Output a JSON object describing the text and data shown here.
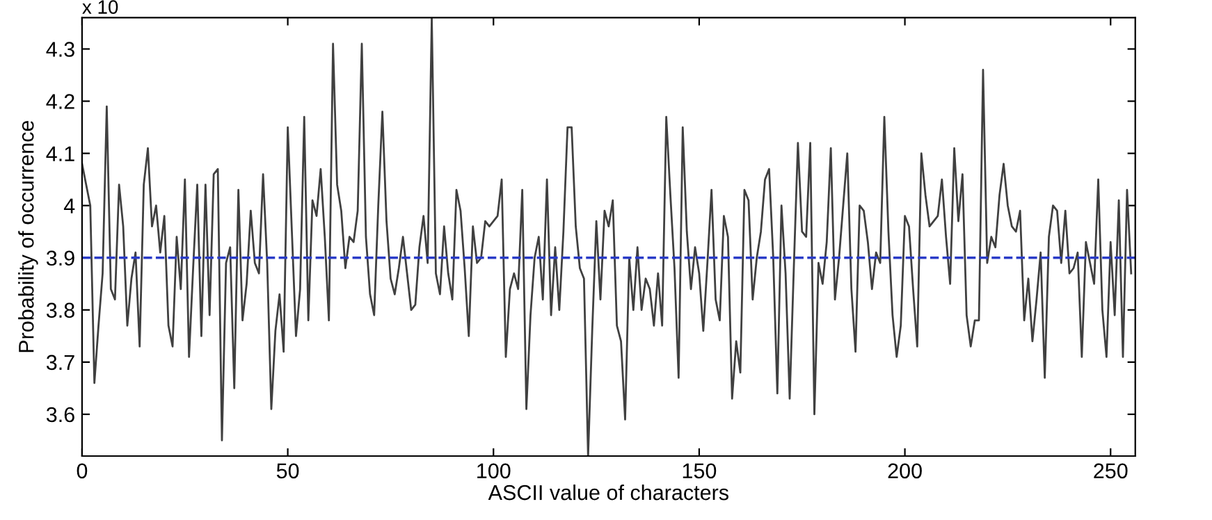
{
  "chart_data": {
    "type": "line",
    "xlabel": "ASCII value of characters",
    "ylabel": "Probability of occurrence",
    "annotations": [
      "x 10"
    ],
    "series": [
      {
        "color": "#404040",
        "x": [
          0,
          1,
          2,
          3,
          4,
          5,
          6,
          7,
          8,
          9,
          10,
          11,
          12,
          13,
          14,
          15,
          16,
          17,
          18,
          19,
          20,
          21,
          22,
          23,
          24,
          25,
          26,
          27,
          28,
          29,
          30,
          31,
          32,
          33,
          34,
          35,
          36,
          37,
          38,
          39,
          40,
          41,
          42,
          43,
          44,
          45,
          46,
          47,
          48,
          49,
          50,
          51,
          52,
          53,
          54,
          55,
          56,
          57,
          58,
          59,
          60,
          61,
          62,
          63,
          64,
          65,
          66,
          67,
          68,
          69,
          70,
          71,
          72,
          73,
          74,
          75,
          76,
          77,
          78,
          79,
          80,
          81,
          82,
          83,
          84,
          85,
          86,
          87,
          88,
          89,
          90,
          91,
          92,
          93,
          94,
          95,
          96,
          97,
          98,
          99,
          100,
          101,
          102,
          103,
          104,
          105,
          106,
          107,
          108,
          109,
          110,
          111,
          112,
          113,
          114,
          115,
          116,
          117,
          118,
          119,
          120,
          121,
          122,
          123,
          124,
          125,
          126,
          127,
          128,
          129,
          130,
          131,
          132,
          133,
          134,
          135,
          136,
          137,
          138,
          139,
          140,
          141,
          142,
          143,
          144,
          145,
          146,
          147,
          148,
          149,
          150,
          151,
          152,
          153,
          154,
          155,
          156,
          157,
          158,
          159,
          160,
          161,
          162,
          163,
          164,
          165,
          166,
          167,
          168,
          169,
          170,
          171,
          172,
          173,
          174,
          175,
          176,
          177,
          178,
          179,
          180,
          181,
          182,
          183,
          184,
          185,
          186,
          187,
          188,
          189,
          190,
          191,
          192,
          193,
          194,
          195,
          196,
          197,
          198,
          199,
          200,
          201,
          202,
          203,
          204,
          205,
          206,
          207,
          208,
          209,
          210,
          211,
          212,
          213,
          214,
          215,
          216,
          217,
          218,
          219,
          220,
          221,
          222,
          223,
          224,
          225,
          226,
          227,
          228,
          229,
          230,
          231,
          232,
          233,
          234,
          235,
          236,
          237,
          238,
          239,
          240,
          241,
          242,
          243,
          244,
          245,
          246,
          247,
          248,
          249,
          250,
          251,
          252,
          253,
          254,
          255
        ],
        "values": [
          4.08,
          4.04,
          4.0,
          3.66,
          3.77,
          3.87,
          4.19,
          3.84,
          3.82,
          4.04,
          3.96,
          3.77,
          3.86,
          3.91,
          3.73,
          4.04,
          4.11,
          3.96,
          4.0,
          3.91,
          3.98,
          3.77,
          3.73,
          3.94,
          3.84,
          4.05,
          3.71,
          3.88,
          4.04,
          3.75,
          4.04,
          3.79,
          4.06,
          4.07,
          3.55,
          3.89,
          3.92,
          3.65,
          4.03,
          3.78,
          3.85,
          3.99,
          3.89,
          3.87,
          4.06,
          3.89,
          3.61,
          3.76,
          3.83,
          3.72,
          4.15,
          3.95,
          3.75,
          3.84,
          4.17,
          3.78,
          4.01,
          3.98,
          4.07,
          3.94,
          3.78,
          4.31,
          4.04,
          3.99,
          3.88,
          3.94,
          3.93,
          3.99,
          4.31,
          3.94,
          3.83,
          3.79,
          4.0,
          4.18,
          3.97,
          3.86,
          3.83,
          3.88,
          3.94,
          3.87,
          3.8,
          3.81,
          3.92,
          3.98,
          3.89,
          4.36,
          3.87,
          3.83,
          3.96,
          3.87,
          3.82,
          4.03,
          3.99,
          3.88,
          3.75,
          3.96,
          3.89,
          3.9,
          3.97,
          3.96,
          3.97,
          3.98,
          4.05,
          3.71,
          3.84,
          3.87,
          3.84,
          4.03,
          3.61,
          3.79,
          3.9,
          3.94,
          3.82,
          4.05,
          3.79,
          3.92,
          3.8,
          3.95,
          4.15,
          4.15,
          3.96,
          3.88,
          3.86,
          3.52,
          3.76,
          3.97,
          3.82,
          3.99,
          3.96,
          4.01,
          3.77,
          3.74,
          3.59,
          3.9,
          3.8,
          3.92,
          3.8,
          3.86,
          3.84,
          3.77,
          3.87,
          3.77,
          4.17,
          4.02,
          3.88,
          3.67,
          4.15,
          3.95,
          3.84,
          3.92,
          3.87,
          3.76,
          3.89,
          4.03,
          3.82,
          3.78,
          3.98,
          3.94,
          3.63,
          3.74,
          3.68,
          4.03,
          4.01,
          3.82,
          3.9,
          3.95,
          4.05,
          4.07,
          3.9,
          3.64,
          4.0,
          3.87,
          3.63,
          3.88,
          4.12,
          3.95,
          3.94,
          4.12,
          3.6,
          3.89,
          3.85,
          3.93,
          4.11,
          3.82,
          3.9,
          4.0,
          4.1,
          3.84,
          3.72,
          4.0,
          3.99,
          3.93,
          3.84,
          3.91,
          3.89,
          4.17,
          3.95,
          3.79,
          3.71,
          3.77,
          3.98,
          3.96,
          3.84,
          3.73,
          4.1,
          4.02,
          3.96,
          3.97,
          3.98,
          4.05,
          3.94,
          3.85,
          4.11,
          3.97,
          4.06,
          3.79,
          3.73,
          3.78,
          3.78,
          4.26,
          3.89,
          3.94,
          3.92,
          4.02,
          4.08,
          4.0,
          3.96,
          3.95,
          3.99,
          3.78,
          3.86,
          3.74,
          3.82,
          3.91,
          3.67,
          3.94,
          4.0,
          3.99,
          3.89,
          3.99,
          3.87,
          3.88,
          3.91,
          3.71,
          3.93,
          3.89,
          3.85,
          4.05,
          3.8,
          3.71,
          3.93,
          3.79,
          4.01,
          3.71,
          4.03,
          3.87
        ]
      }
    ],
    "ref_lines": [
      {
        "axis": "y",
        "value": 3.9,
        "color": "#2a3cc8",
        "line_style": "dashed"
      }
    ],
    "xlim": [
      0,
      256
    ],
    "xticks": [
      0,
      50,
      100,
      150,
      200,
      250
    ],
    "ylim": [
      3.52,
      4.36
    ],
    "yticks": [
      3.6,
      3.7,
      3.8,
      3.9,
      4,
      4.1,
      4.2,
      4.3
    ],
    "grid": false,
    "legend": false,
    "marker": "none",
    "line_style": "solid"
  }
}
